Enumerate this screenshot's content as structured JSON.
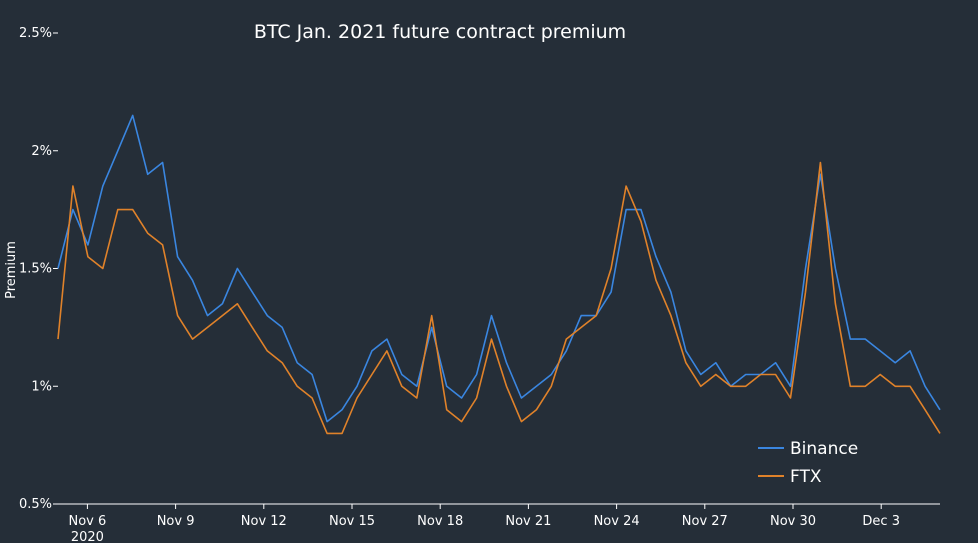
{
  "chart_data": {
    "type": "line",
    "title": "BTC Jan. 2021 future contract premium",
    "xlabel": "",
    "ylabel": "Premium",
    "ylim": [
      0.5,
      2.5
    ],
    "xlim": [
      "2020-11-05",
      "2020-12-05"
    ],
    "x_ticks": [
      "Nov 6",
      "Nov 9",
      "Nov 12",
      "Nov 15",
      "Nov 18",
      "Nov 21",
      "Nov 24",
      "Nov 27",
      "Nov 30",
      "Dec 3"
    ],
    "x_year_label": "2020",
    "y_ticks": [
      "0.5%",
      "1%",
      "1.5%",
      "2%",
      "2.5%"
    ],
    "y_unit": "%",
    "grid": false,
    "legend_position": "bottom-right",
    "x": [
      "Nov 5 12:00",
      "Nov 6 00:00",
      "Nov 6 12:00",
      "Nov 7 00:00",
      "Nov 7 12:00",
      "Nov 8 00:00",
      "Nov 8 12:00",
      "Nov 9 00:00",
      "Nov 9 12:00",
      "Nov 10 00:00",
      "Nov 10 12:00",
      "Nov 11 00:00",
      "Nov 11 12:00",
      "Nov 12 00:00",
      "Nov 12 12:00",
      "Nov 13 00:00",
      "Nov 13 12:00",
      "Nov 14 00:00",
      "Nov 14 12:00",
      "Nov 15 00:00",
      "Nov 15 12:00",
      "Nov 16 00:00",
      "Nov 16 12:00",
      "Nov 17 00:00",
      "Nov 17 12:00",
      "Nov 18 00:00",
      "Nov 18 12:00",
      "Nov 19 00:00",
      "Nov 19 12:00",
      "Nov 20 00:00",
      "Nov 20 12:00",
      "Nov 21 00:00",
      "Nov 21 12:00",
      "Nov 22 00:00",
      "Nov 22 12:00",
      "Nov 23 00:00",
      "Nov 23 12:00",
      "Nov 24 00:00",
      "Nov 24 12:00",
      "Nov 25 00:00",
      "Nov 25 12:00",
      "Nov 26 00:00",
      "Nov 26 12:00",
      "Nov 27 00:00",
      "Nov 27 12:00",
      "Nov 28 00:00",
      "Nov 28 12:00",
      "Nov 29 00:00",
      "Nov 29 12:00",
      "Nov 30 00:00",
      "Nov 30 12:00",
      "Dec 1 00:00",
      "Dec 1 12:00",
      "Dec 2 00:00",
      "Dec 2 12:00",
      "Dec 3 00:00",
      "Dec 3 12:00",
      "Dec 4 00:00",
      "Dec 4 12:00",
      "Dec 5 00:00"
    ],
    "series": [
      {
        "name": "Binance",
        "color": "#3a86e0",
        "values": [
          1.5,
          1.75,
          1.6,
          1.85,
          2.0,
          2.15,
          1.9,
          1.95,
          1.55,
          1.45,
          1.3,
          1.35,
          1.5,
          1.4,
          1.3,
          1.25,
          1.1,
          1.05,
          0.85,
          0.9,
          1.0,
          1.15,
          1.2,
          1.05,
          1.0,
          1.25,
          1.0,
          0.95,
          1.05,
          1.3,
          1.1,
          0.95,
          1.0,
          1.05,
          1.15,
          1.3,
          1.3,
          1.4,
          1.75,
          1.75,
          1.55,
          1.4,
          1.15,
          1.05,
          1.1,
          1.0,
          1.05,
          1.05,
          1.1,
          1.0,
          1.5,
          1.9,
          1.5,
          1.2,
          1.2,
          1.15,
          1.1,
          1.15,
          1.0,
          0.9
        ]
      },
      {
        "name": "FTX",
        "color": "#e0822a",
        "values": [
          1.2,
          1.85,
          1.55,
          1.5,
          1.75,
          1.75,
          1.65,
          1.6,
          1.3,
          1.2,
          1.25,
          1.3,
          1.35,
          1.25,
          1.15,
          1.1,
          1.0,
          0.95,
          0.8,
          0.8,
          0.95,
          1.05,
          1.15,
          1.0,
          0.95,
          1.3,
          0.9,
          0.85,
          0.95,
          1.2,
          1.0,
          0.85,
          0.9,
          1.0,
          1.2,
          1.25,
          1.3,
          1.5,
          1.85,
          1.7,
          1.45,
          1.3,
          1.1,
          1.0,
          1.05,
          1.0,
          1.0,
          1.05,
          1.05,
          0.95,
          1.4,
          1.95,
          1.35,
          1.0,
          1.0,
          1.05,
          1.0,
          1.0,
          0.9,
          0.8
        ]
      }
    ]
  }
}
